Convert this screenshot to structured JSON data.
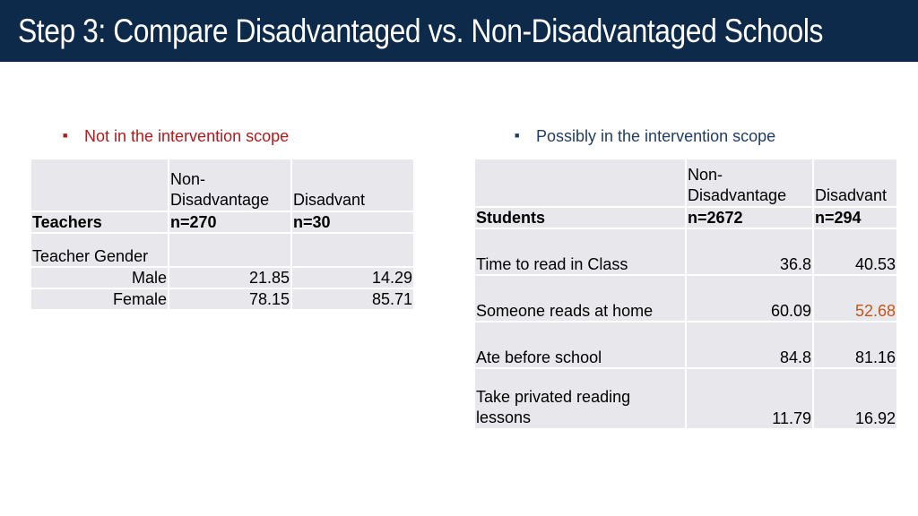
{
  "title": "Step 3: Compare Disadvantaged vs. Non-Disadvantaged Schools",
  "left_bullet": "Not in the intervention scope",
  "right_bullet": "Possibly in the intervention scope",
  "teachers_table": {
    "row_header": "Teachers",
    "col1_line1": "Non-",
    "col1_line2": "Disadvantage",
    "col1_n": "n=270",
    "col2_line1": "Disadvant",
    "col2_n": "n=30",
    "group_label": "Teacher Gender",
    "rows": [
      {
        "label": "Male",
        "v1": "21.85",
        "v2": "14.29"
      },
      {
        "label": "Female",
        "v1": "78.15",
        "v2": "85.71"
      }
    ]
  },
  "students_table": {
    "row_header": "Students",
    "col1_line1": "Non-",
    "col1_line2": "Disadvantage",
    "col1_n": "n=2672",
    "col2_line1": "Disadvant",
    "col2_n": "n=294",
    "rows": [
      {
        "label": "Time to read in Class",
        "v1": "36.8",
        "v2": "40.53"
      },
      {
        "label": "Someone reads at home",
        "v1": "60.09",
        "v2": "52.68"
      },
      {
        "label": "Ate before school",
        "v1": "84.8",
        "v2": "81.16"
      },
      {
        "label_line1": "Take privated reading",
        "label_line2": "lessons",
        "v1": "11.79",
        "v2": "16.92"
      }
    ]
  },
  "colors": {
    "header_bg": "#0d2a4a",
    "left_bullet": "#b01c1c",
    "right_bullet": "#1f3d66",
    "highlight": "#c0561a",
    "cell_bg": "#e8e8ec"
  }
}
